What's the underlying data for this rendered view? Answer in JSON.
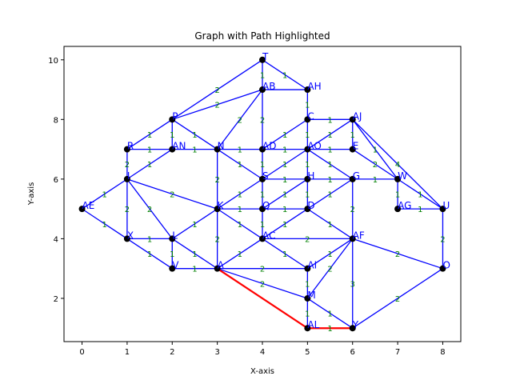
{
  "chart_data": {
    "type": "graph",
    "title": "Graph with Path Highlighted",
    "xlabel": "X-axis",
    "ylabel": "Y-axis",
    "xlim": [
      -0.4,
      8.4
    ],
    "ylim": [
      0.55,
      10.45
    ],
    "xticks": [
      0,
      1,
      2,
      3,
      4,
      5,
      6,
      7,
      8
    ],
    "yticks": [
      2,
      4,
      6,
      8,
      10
    ],
    "grid": false,
    "colors": {
      "edge": "#0000ff",
      "path": "#ff0000",
      "node": "#000000",
      "node_label": "#0000ff",
      "weight": "#008000"
    },
    "nodes": [
      {
        "id": "T",
        "x": 4,
        "y": 10
      },
      {
        "id": "AB",
        "x": 4,
        "y": 9
      },
      {
        "id": "AH",
        "x": 5,
        "y": 9
      },
      {
        "id": "P",
        "x": 2,
        "y": 8
      },
      {
        "id": "C",
        "x": 5,
        "y": 8
      },
      {
        "id": "AJ",
        "x": 6,
        "y": 8
      },
      {
        "id": "R",
        "x": 1,
        "y": 7
      },
      {
        "id": "AN",
        "x": 2,
        "y": 7
      },
      {
        "id": "N",
        "x": 3,
        "y": 7
      },
      {
        "id": "AD",
        "x": 4,
        "y": 7
      },
      {
        "id": "AO",
        "x": 5,
        "y": 7
      },
      {
        "id": "E",
        "x": 6,
        "y": 7
      },
      {
        "id": "I",
        "x": 1,
        "y": 6
      },
      {
        "id": "S",
        "x": 4,
        "y": 6
      },
      {
        "id": "H",
        "x": 5,
        "y": 6
      },
      {
        "id": "G",
        "x": 6,
        "y": 6
      },
      {
        "id": "W",
        "x": 7,
        "y": 6
      },
      {
        "id": "AE",
        "x": 0,
        "y": 5
      },
      {
        "id": "K",
        "x": 3,
        "y": 5
      },
      {
        "id": "Q",
        "x": 4,
        "y": 5
      },
      {
        "id": "D",
        "x": 5,
        "y": 5
      },
      {
        "id": "AG",
        "x": 7,
        "y": 5
      },
      {
        "id": "U",
        "x": 8,
        "y": 5
      },
      {
        "id": "X",
        "x": 1,
        "y": 4
      },
      {
        "id": "L",
        "x": 2,
        "y": 4
      },
      {
        "id": "AC",
        "x": 4,
        "y": 4
      },
      {
        "id": "AF",
        "x": 6,
        "y": 4
      },
      {
        "id": "V",
        "x": 2,
        "y": 3
      },
      {
        "id": "A",
        "x": 3,
        "y": 3
      },
      {
        "id": "AI",
        "x": 5,
        "y": 3
      },
      {
        "id": "O",
        "x": 8,
        "y": 3
      },
      {
        "id": "M",
        "x": 5,
        "y": 2
      },
      {
        "id": "AL",
        "x": 5,
        "y": 1
      },
      {
        "id": "Y",
        "x": 6,
        "y": 1
      }
    ],
    "edges": [
      {
        "a": "T",
        "b": "AB",
        "w": "1"
      },
      {
        "a": "T",
        "b": "AH",
        "w": "1"
      },
      {
        "a": "T",
        "b": "P",
        "w": "2"
      },
      {
        "a": "AB",
        "b": "AH",
        "w": ""
      },
      {
        "a": "AB",
        "b": "P",
        "w": "2"
      },
      {
        "a": "AB",
        "b": "N",
        "w": "2"
      },
      {
        "a": "AB",
        "b": "AD",
        "w": "2"
      },
      {
        "a": "AH",
        "b": "C",
        "w": "1"
      },
      {
        "a": "P",
        "b": "R",
        "w": "1"
      },
      {
        "a": "P",
        "b": "AN",
        "w": "1"
      },
      {
        "a": "P",
        "b": "N",
        "w": "1"
      },
      {
        "a": "C",
        "b": "AJ",
        "w": "1"
      },
      {
        "a": "C",
        "b": "AD",
        "w": "1"
      },
      {
        "a": "C",
        "b": "AO",
        "w": "1"
      },
      {
        "a": "AJ",
        "b": "AO",
        "w": "1"
      },
      {
        "a": "AJ",
        "b": "E",
        "w": "1"
      },
      {
        "a": "AJ",
        "b": "U",
        "w": "4"
      },
      {
        "a": "AJ",
        "b": "W",
        "w": "1"
      },
      {
        "a": "R",
        "b": "AN",
        "w": "1"
      },
      {
        "a": "AN",
        "b": "N",
        "w": "1"
      },
      {
        "a": "AN",
        "b": "I",
        "w": "1"
      },
      {
        "a": "N",
        "b": "AD",
        "w": "1"
      },
      {
        "a": "N",
        "b": "K",
        "w": "2"
      },
      {
        "a": "N",
        "b": "S",
        "w": "1"
      },
      {
        "a": "AD",
        "b": "AO",
        "w": "1"
      },
      {
        "a": "AD",
        "b": "S",
        "w": "1"
      },
      {
        "a": "AO",
        "b": "E",
        "w": "1"
      },
      {
        "a": "AO",
        "b": "S",
        "w": "1"
      },
      {
        "a": "AO",
        "b": "H",
        "w": "1"
      },
      {
        "a": "AO",
        "b": "G",
        "w": "1"
      },
      {
        "a": "E",
        "b": "W",
        "w": "2"
      },
      {
        "a": "I",
        "b": "R",
        "w": "2"
      },
      {
        "a": "I",
        "b": "AE",
        "w": "1"
      },
      {
        "a": "I",
        "b": "X",
        "w": "2"
      },
      {
        "a": "I",
        "b": "L",
        "w": "2"
      },
      {
        "a": "I",
        "b": "K",
        "w": "2"
      },
      {
        "a": "S",
        "b": "H",
        "w": "1"
      },
      {
        "a": "S",
        "b": "Q",
        "w": "1"
      },
      {
        "a": "S",
        "b": "K",
        "w": "1"
      },
      {
        "a": "H",
        "b": "G",
        "w": "1"
      },
      {
        "a": "H",
        "b": "D",
        "w": "1"
      },
      {
        "a": "H",
        "b": "Q",
        "w": "1"
      },
      {
        "a": "G",
        "b": "W",
        "w": "1"
      },
      {
        "a": "G",
        "b": "D",
        "w": "1"
      },
      {
        "a": "G",
        "b": "AF",
        "w": "2"
      },
      {
        "a": "W",
        "b": "AG",
        "w": "1"
      },
      {
        "a": "W",
        "b": "U",
        "w": "1"
      },
      {
        "a": "AE",
        "b": "X",
        "w": "1"
      },
      {
        "a": "K",
        "b": "Q",
        "w": "1"
      },
      {
        "a": "K",
        "b": "L",
        "w": "1"
      },
      {
        "a": "K",
        "b": "A",
        "w": "2"
      },
      {
        "a": "K",
        "b": "AC",
        "w": "1"
      },
      {
        "a": "Q",
        "b": "D",
        "w": "1"
      },
      {
        "a": "Q",
        "b": "AC",
        "w": "1"
      },
      {
        "a": "D",
        "b": "AC",
        "w": "1"
      },
      {
        "a": "D",
        "b": "AF",
        "w": "1"
      },
      {
        "a": "AG",
        "b": "U",
        "w": "1"
      },
      {
        "a": "X",
        "b": "L",
        "w": "1"
      },
      {
        "a": "X",
        "b": "V",
        "w": "1"
      },
      {
        "a": "L",
        "b": "V",
        "w": "1"
      },
      {
        "a": "L",
        "b": "A",
        "w": "1"
      },
      {
        "a": "AC",
        "b": "A",
        "w": "1"
      },
      {
        "a": "AC",
        "b": "AF",
        "w": "2"
      },
      {
        "a": "AC",
        "b": "AI",
        "w": "1"
      },
      {
        "a": "AF",
        "b": "AI",
        "w": "1"
      },
      {
        "a": "AF",
        "b": "M",
        "w": "2"
      },
      {
        "a": "AF",
        "b": "O",
        "w": "2"
      },
      {
        "a": "AF",
        "b": "Y",
        "w": "3"
      },
      {
        "a": "U",
        "b": "O",
        "w": "2"
      },
      {
        "a": "V",
        "b": "A",
        "w": "1"
      },
      {
        "a": "A",
        "b": "AI",
        "w": "2"
      },
      {
        "a": "A",
        "b": "M",
        "w": "2"
      },
      {
        "a": "AI",
        "b": "M",
        "w": "1"
      },
      {
        "a": "M",
        "b": "AL",
        "w": "1"
      },
      {
        "a": "M",
        "b": "Y",
        "w": "1"
      },
      {
        "a": "O",
        "b": "Y",
        "w": "2"
      },
      {
        "a": "AL",
        "b": "Y",
        "w": "1"
      }
    ],
    "path": [
      "A",
      "AL",
      "Y"
    ]
  }
}
